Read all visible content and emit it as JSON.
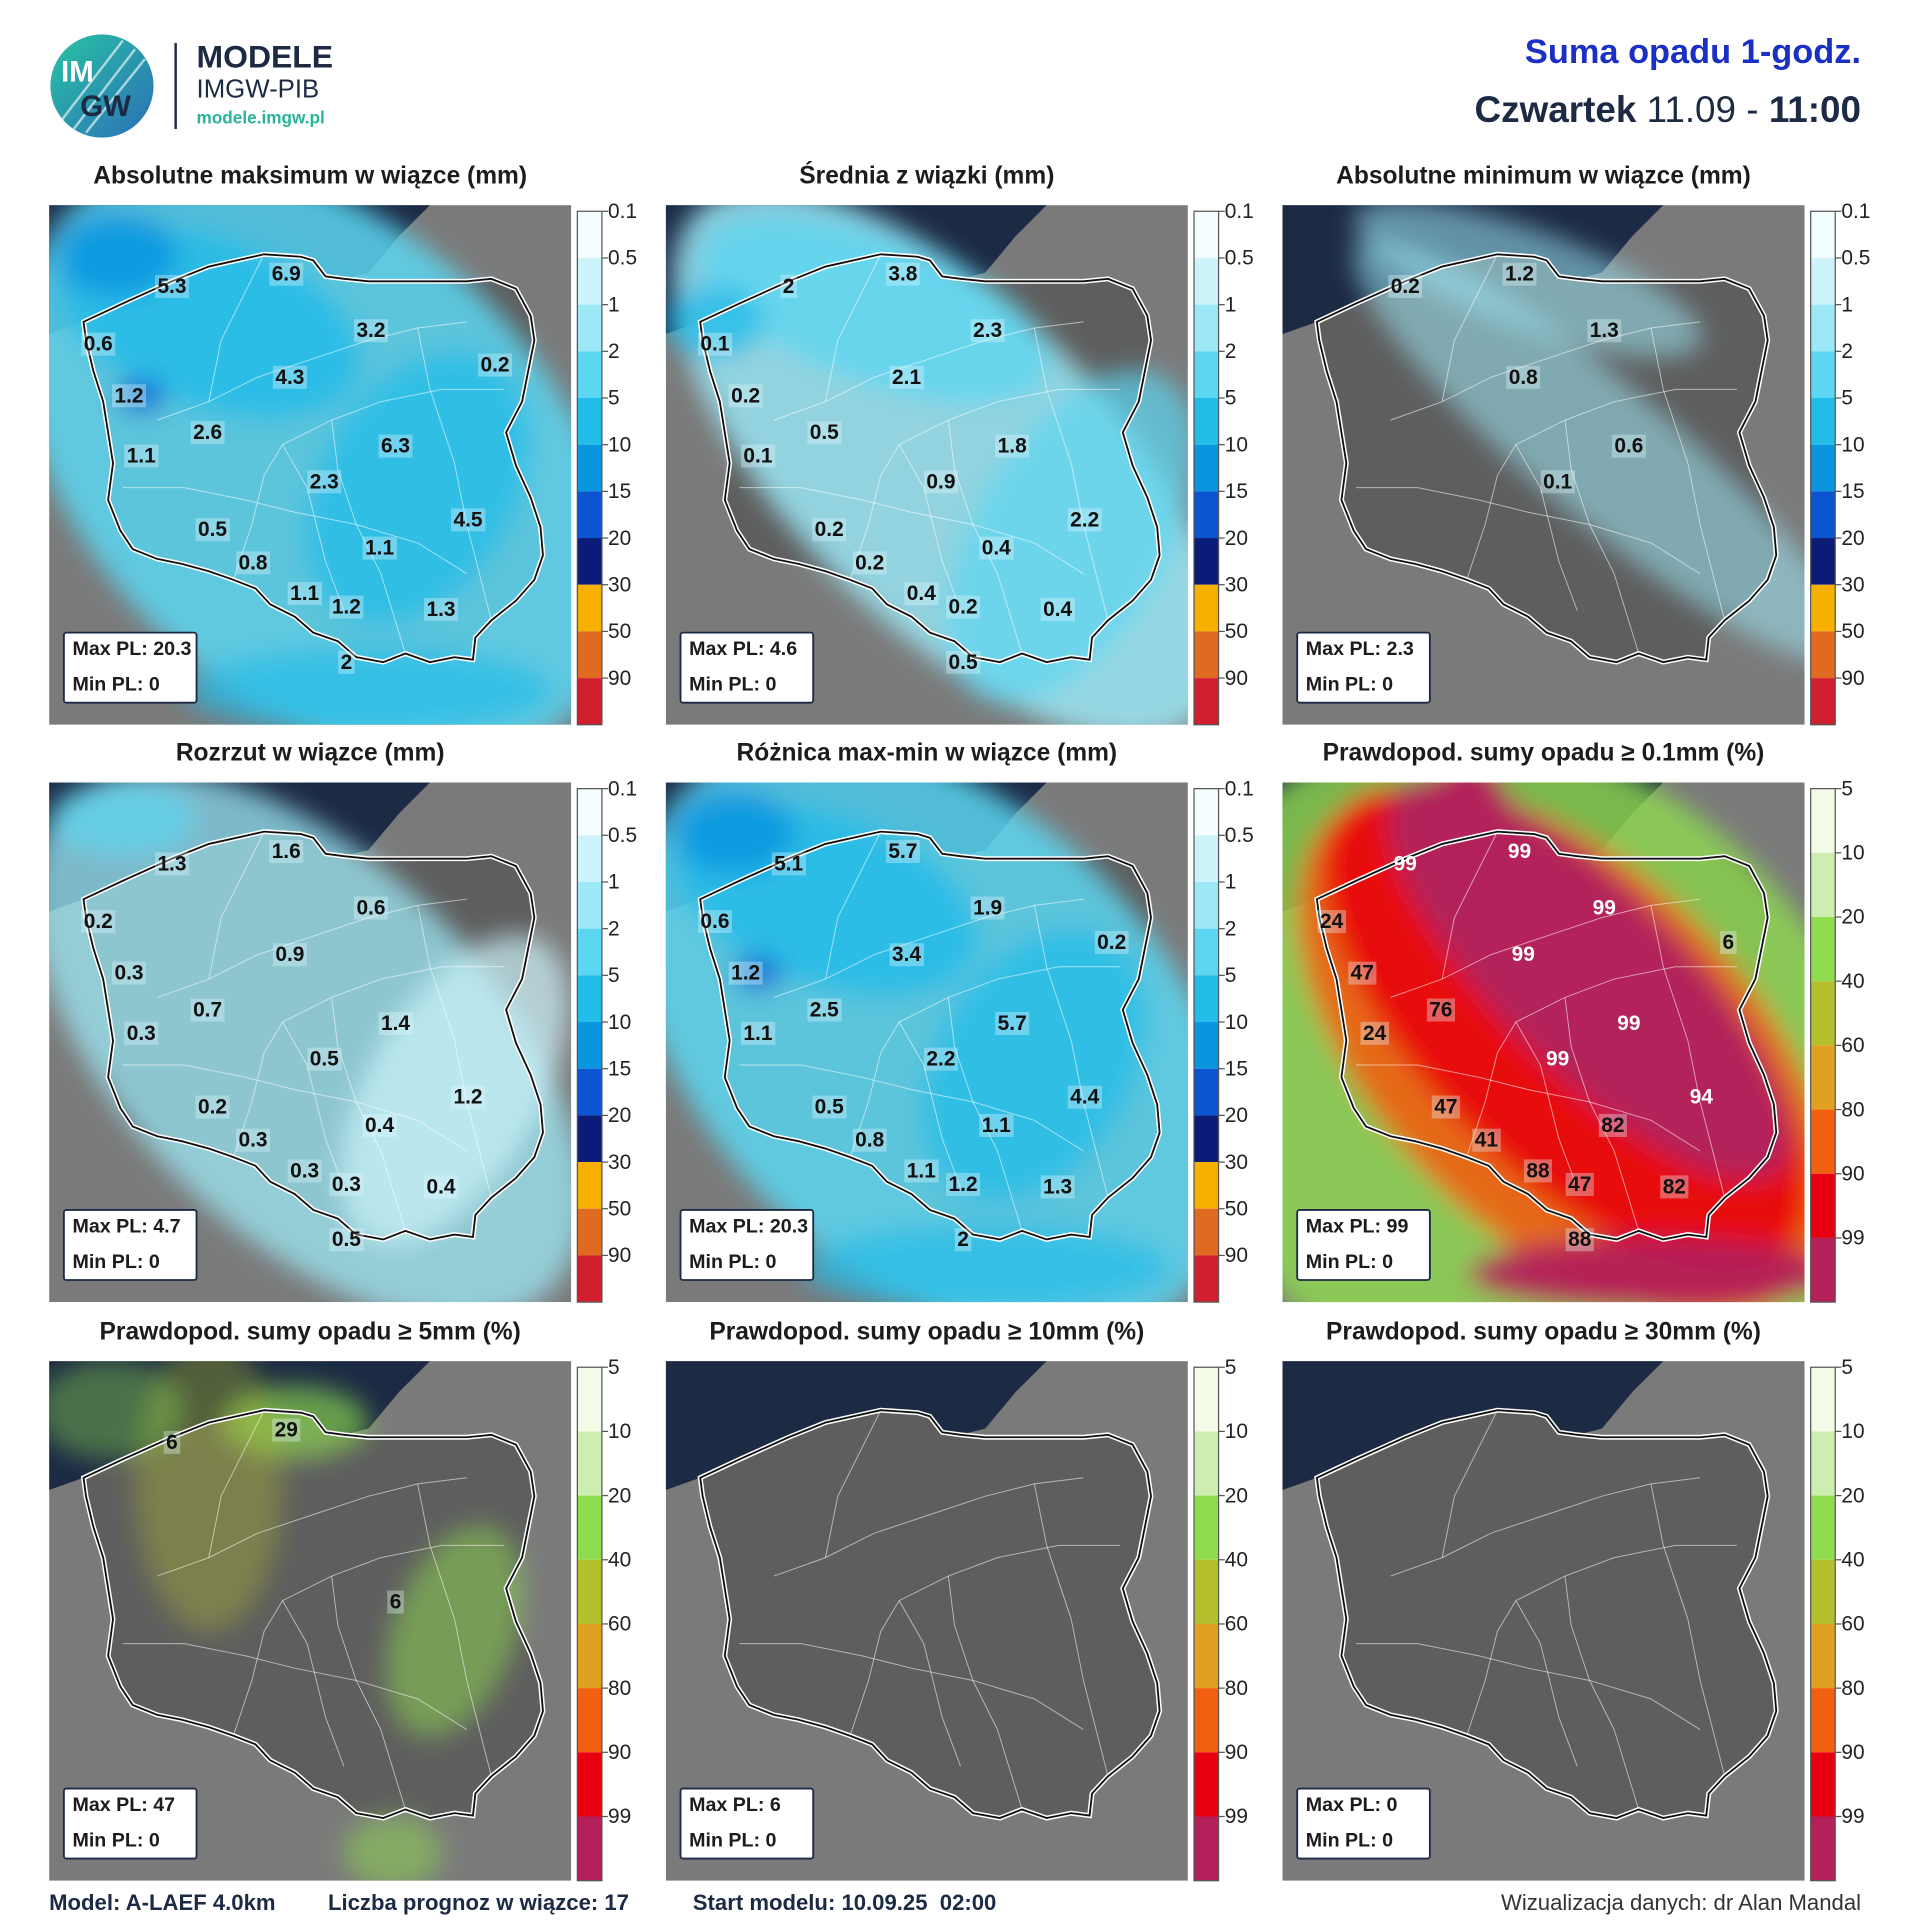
{
  "header": {
    "logo_top": "IM",
    "logo_bottom": "GW",
    "brand": "MODELE",
    "brand_sub": "IMGW-PIB",
    "url": "modele.imgw.pl",
    "title": "Suma opadu 1-godz.",
    "weekday": "Czwartek",
    "date": "11.09",
    "separator": "-",
    "time": "11:00"
  },
  "colorbars": {
    "mm": {
      "ticks": [
        0.1,
        0.5,
        1,
        2,
        5,
        10,
        15,
        20,
        30,
        50,
        90
      ],
      "colors": [
        "#f4fdff",
        "#cdf4fb",
        "#9ce8f6",
        "#5cd6f1",
        "#22bce8",
        "#0a95df",
        "#0b55d2",
        "#0a1c78",
        "#f5b000",
        "#e06a20",
        "#d21f30"
      ]
    },
    "prob": {
      "ticks": [
        5,
        10,
        20,
        40,
        60,
        80,
        90,
        99
      ],
      "colors": [
        "#f3fbe8",
        "#cdeeb0",
        "#8fdc4f",
        "#b4bf2e",
        "#e0a020",
        "#f06010",
        "#e80010",
        "#b3205a"
      ]
    }
  },
  "panels": [
    {
      "title": "Absolutne maksimum w wiązce (mm)",
      "colorbar": "mm",
      "labels": [
        5.3,
        6.9,
        0.6,
        3.2,
        0.2,
        1.2,
        4.3,
        2.6,
        6.3,
        1.1,
        2.3,
        4.5,
        0.5,
        1.1,
        0.8,
        1.1,
        1.2,
        1.3,
        2
      ],
      "max": "Max PL: 20.3",
      "min": "Min PL: 0"
    },
    {
      "title": "Średnia z wiązki (mm)",
      "colorbar": "mm",
      "labels": [
        2,
        3.8,
        0.1,
        2.3,
        0.2,
        2.1,
        0.5,
        1.8,
        0.1,
        0.9,
        2.2,
        0.2,
        0.4,
        0.2,
        0.4,
        0.2,
        0.4,
        0.5
      ],
      "max": "Max PL: 4.6",
      "min": "Min PL: 0"
    },
    {
      "title": "Absolutne minimum w wiązce (mm)",
      "colorbar": "mm",
      "labels": [
        0.2,
        1.2,
        1.3,
        0.8,
        0.6,
        0.1
      ],
      "max": "Max PL: 2.3",
      "min": "Min PL: 0"
    },
    {
      "title": "Rozrzut w wiązce (mm)",
      "colorbar": "mm",
      "labels": [
        1.3,
        1.6,
        0.2,
        0.6,
        0.3,
        0.9,
        0.7,
        1.4,
        0.3,
        0.5,
        1.2,
        0.2,
        0.4,
        0.3,
        0.3,
        0.3,
        0.4,
        0.5
      ],
      "max": "Max PL: 4.7",
      "min": "Min PL: 0"
    },
    {
      "title": "Różnica max-min w wiązce (mm)",
      "colorbar": "mm",
      "labels": [
        5.1,
        5.7,
        0.6,
        1.9,
        0.2,
        1.2,
        3.4,
        2.5,
        5.7,
        1.1,
        2.2,
        4.4,
        0.5,
        1.1,
        0.8,
        1.1,
        1.2,
        1.3,
        2
      ],
      "max": "Max PL: 20.3",
      "min": "Min PL: 0"
    },
    {
      "title": "Prawdopod. sumy opadu ≥ 0.1mm (%)",
      "colorbar": "prob",
      "labels": [
        99,
        99,
        24,
        99,
        6,
        47,
        99,
        76,
        99,
        24,
        99,
        94,
        47,
        82,
        41,
        88,
        47,
        82,
        88
      ],
      "max": "Max PL: 99",
      "min": "Min PL: 0"
    },
    {
      "title": "Prawdopod. sumy opadu ≥ 5mm (%)",
      "colorbar": "prob",
      "labels": [
        6,
        29,
        6
      ],
      "max": "Max PL: 47",
      "min": "Min PL: 0"
    },
    {
      "title": "Prawdopod. sumy opadu ≥ 10mm (%)",
      "colorbar": "prob",
      "labels": [],
      "max": "Max PL: 6",
      "min": "Min PL: 0"
    },
    {
      "title": "Prawdopod. sumy opadu ≥ 30mm (%)",
      "colorbar": "prob",
      "labels": [],
      "max": "Max PL: 0",
      "min": "Min PL: 0"
    }
  ],
  "footer": {
    "model": "Model: A-LAEF 4.0km",
    "members": "Liczba prognoz w wiązce: 17",
    "start": "Start modelu: 10.09.25  02:00",
    "credit": "Wizualizacja danych: dr Alan Mandal"
  }
}
